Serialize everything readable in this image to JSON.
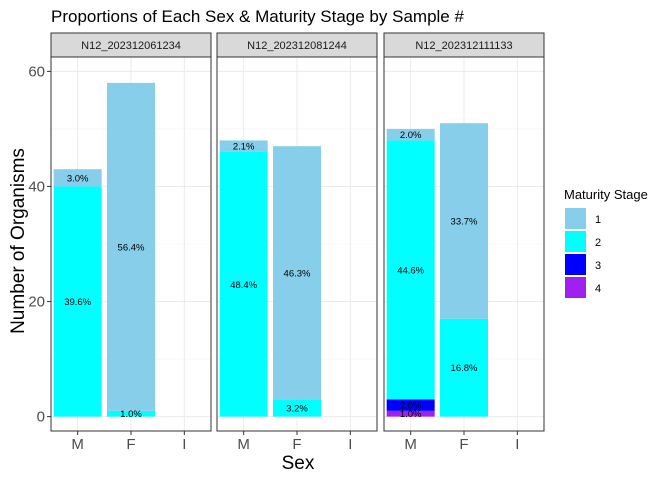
{
  "chart_data": {
    "type": "bar",
    "title": "Proportions of Each Sex & Maturity Stage by Sample #",
    "xlabel": "Sex",
    "ylabel": "Number of Organisms",
    "categories": [
      "M",
      "F",
      "I"
    ],
    "ylim": [
      -2.5,
      62.5
    ],
    "yticks": [
      0,
      20,
      40,
      60
    ],
    "grid": true,
    "legend": {
      "title": "Maturity Stage",
      "position": "right",
      "entries": [
        {
          "label": "1",
          "color": "#87CEEB"
        },
        {
          "label": "2",
          "color": "#00FFFF"
        },
        {
          "label": "3",
          "color": "#0000FF"
        },
        {
          "label": "4",
          "color": "#A020F0"
        }
      ]
    },
    "panels": [
      {
        "name": "N12_202312061234",
        "bars": [
          {
            "category": "M",
            "segments": [
              {
                "stage": "2",
                "value": 40,
                "label": "39.6%"
              },
              {
                "stage": "1",
                "value": 3,
                "label": "3.0%"
              }
            ]
          },
          {
            "category": "F",
            "segments": [
              {
                "stage": "2",
                "value": 1,
                "label": "1.0%"
              },
              {
                "stage": "1",
                "value": 57,
                "label": "56.4%"
              }
            ]
          }
        ]
      },
      {
        "name": "N12_202312081244",
        "bars": [
          {
            "category": "M",
            "segments": [
              {
                "stage": "2",
                "value": 46,
                "label": "48.4%"
              },
              {
                "stage": "1",
                "value": 2,
                "label": "2.1%"
              }
            ]
          },
          {
            "category": "F",
            "segments": [
              {
                "stage": "2",
                "value": 3,
                "label": "3.2%"
              },
              {
                "stage": "1",
                "value": 44,
                "label": "46.3%"
              }
            ]
          }
        ]
      },
      {
        "name": "N12_202312111133",
        "bars": [
          {
            "category": "M",
            "segments": [
              {
                "stage": "4",
                "value": 1,
                "label": "1.0%"
              },
              {
                "stage": "3",
                "value": 2,
                "label": "2.0%"
              },
              {
                "stage": "2",
                "value": 45,
                "label": "44.6%"
              },
              {
                "stage": "1",
                "value": 2,
                "label": "2.0%"
              }
            ]
          },
          {
            "category": "F",
            "segments": [
              {
                "stage": "2",
                "value": 17,
                "label": "16.8%"
              },
              {
                "stage": "1",
                "value": 34,
                "label": "33.7%"
              }
            ]
          }
        ]
      }
    ]
  }
}
